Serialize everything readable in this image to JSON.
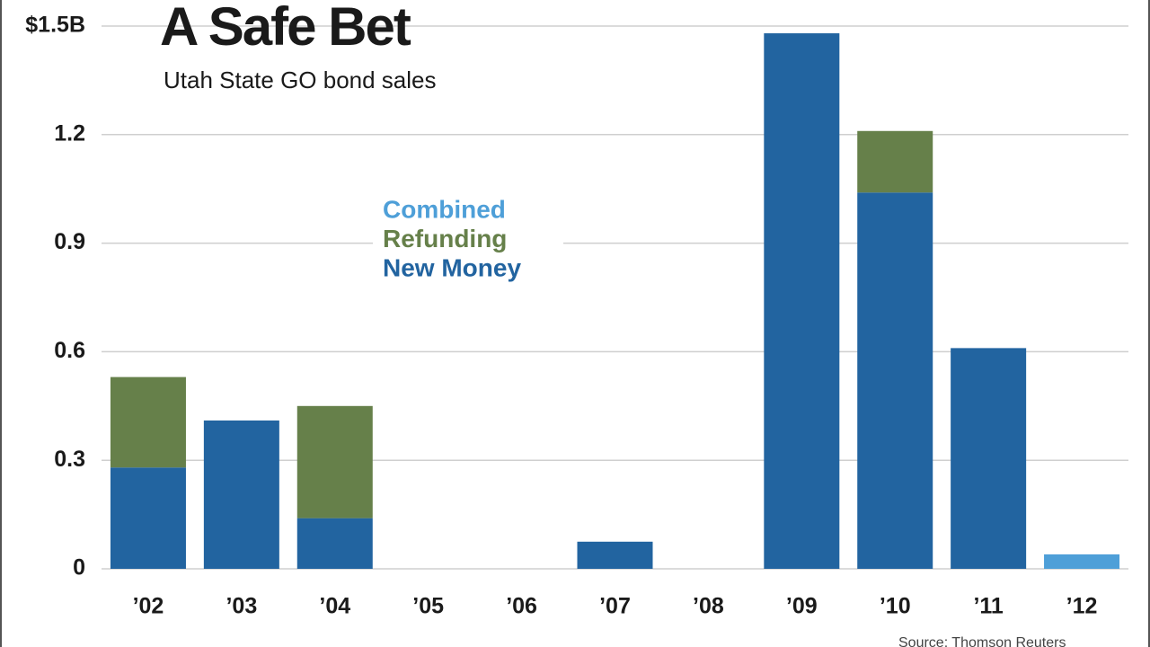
{
  "chart_data": {
    "type": "bar",
    "stacked": true,
    "title": "A Safe Bet",
    "subtitle": "Utah State GO bond sales",
    "source": "Source: Thomson Reuters",
    "categories": [
      "’02",
      "’03",
      "’04",
      "’05",
      "’06",
      "’07",
      "’08",
      "’09",
      "’10",
      "’11",
      "’12"
    ],
    "series": [
      {
        "name": "New Money",
        "color": "#2264a0",
        "values": [
          0.28,
          0.41,
          0.14,
          0,
          0,
          0.075,
          0,
          1.48,
          1.04,
          0.61,
          0
        ]
      },
      {
        "name": "Refunding",
        "color": "#66804a",
        "values": [
          0.25,
          0,
          0.31,
          0,
          0,
          0,
          0,
          0,
          0.17,
          0,
          0
        ]
      },
      {
        "name": "Combined",
        "color": "#4e9fd8",
        "values": [
          0,
          0,
          0,
          0,
          0,
          0,
          0,
          0,
          0,
          0,
          0.04
        ]
      }
    ],
    "ylim": [
      0,
      1.5
    ],
    "yticks": [
      0,
      0.3,
      0.6,
      0.9,
      1.2,
      {
        "value": 1.5,
        "label": "$1.5B"
      }
    ],
    "grid": true
  }
}
